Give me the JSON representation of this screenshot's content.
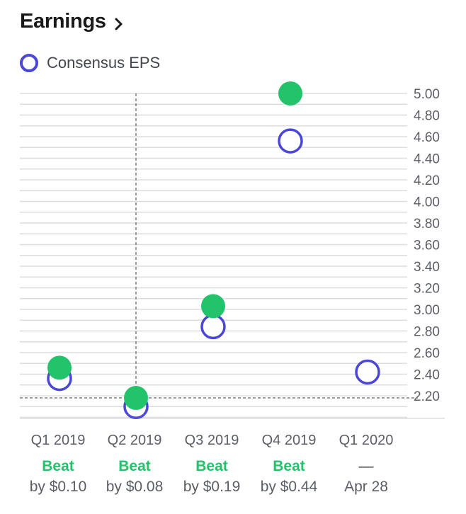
{
  "header": {
    "title": "Earnings"
  },
  "legend": {
    "label": "Consensus EPS"
  },
  "colors": {
    "estimate": "#4a47d8",
    "actual": "#22c36b",
    "grid": "#dcdde0",
    "axis_text": "#5b5e66",
    "beat": "#22c36b"
  },
  "chart_data": {
    "type": "scatter",
    "categories": [
      "Q1 2019",
      "Q2 2019",
      "Q3 2019",
      "Q4 2019",
      "Q1 2020"
    ],
    "series": [
      {
        "name": "Consensus EPS",
        "style": "hollow-circle",
        "values": [
          2.36,
          2.1,
          2.84,
          4.56,
          2.42
        ]
      },
      {
        "style": "filled-circle",
        "values": [
          2.46,
          2.18,
          3.03,
          5.0,
          null
        ]
      }
    ],
    "y_ticks": [
      "5.00",
      "4.80",
      "4.60",
      "4.40",
      "4.20",
      "4.00",
      "3.80",
      "3.60",
      "3.40",
      "3.20",
      "3.00",
      "2.80",
      "2.60",
      "2.40",
      "2.20"
    ],
    "ylim": [
      2.0,
      5.0
    ],
    "grid": true,
    "crosshair": {
      "category": "Q2 2019",
      "value": 2.18
    },
    "results": [
      {
        "status": "Beat",
        "detail": "by $0.10"
      },
      {
        "status": "Beat",
        "detail": "by $0.08"
      },
      {
        "status": "Beat",
        "detail": "by $0.19"
      },
      {
        "status": "Beat",
        "detail": "by $0.44"
      },
      {
        "status": "—",
        "detail": "Apr 28"
      }
    ]
  }
}
